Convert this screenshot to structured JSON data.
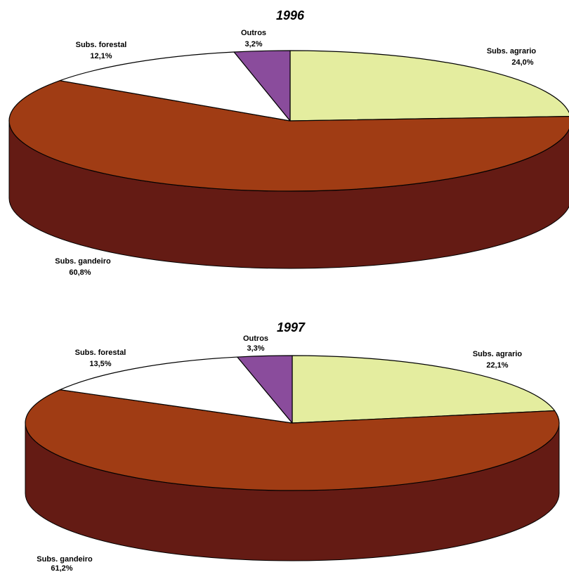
{
  "chart_data": [
    {
      "type": "pie",
      "title": "1996",
      "categories": [
        "Subs. agrario",
        "Subs. gandeiro",
        "Subs. forestal",
        "Outros"
      ],
      "values": [
        24.0,
        60.8,
        12.1,
        3.2
      ],
      "value_labels": [
        "24,0%",
        "60,8%",
        "12,1%",
        "3,2%"
      ],
      "colors": [
        "#e4ed9f",
        "#a03c14",
        "#ffffff",
        "#8a4c9c"
      ],
      "side_colors": [
        "#8f9458",
        "#641b14",
        "#8c8c8c",
        "#4f2a5a"
      ],
      "three_d": true
    },
    {
      "type": "pie",
      "title": "1997",
      "categories": [
        "Subs. agrario",
        "Subs. gandeiro",
        "Subs. forestal",
        "Outros"
      ],
      "values": [
        22.1,
        61.2,
        13.5,
        3.3
      ],
      "value_labels": [
        "22,1%",
        "61,2%",
        "13,5%",
        "3,3%"
      ],
      "colors": [
        "#e4ed9f",
        "#a03c14",
        "#ffffff",
        "#8a4c9c"
      ],
      "side_colors": [
        "#8f9458",
        "#641b14",
        "#8c8c8c",
        "#4f2a5a"
      ],
      "three_d": true
    }
  ]
}
